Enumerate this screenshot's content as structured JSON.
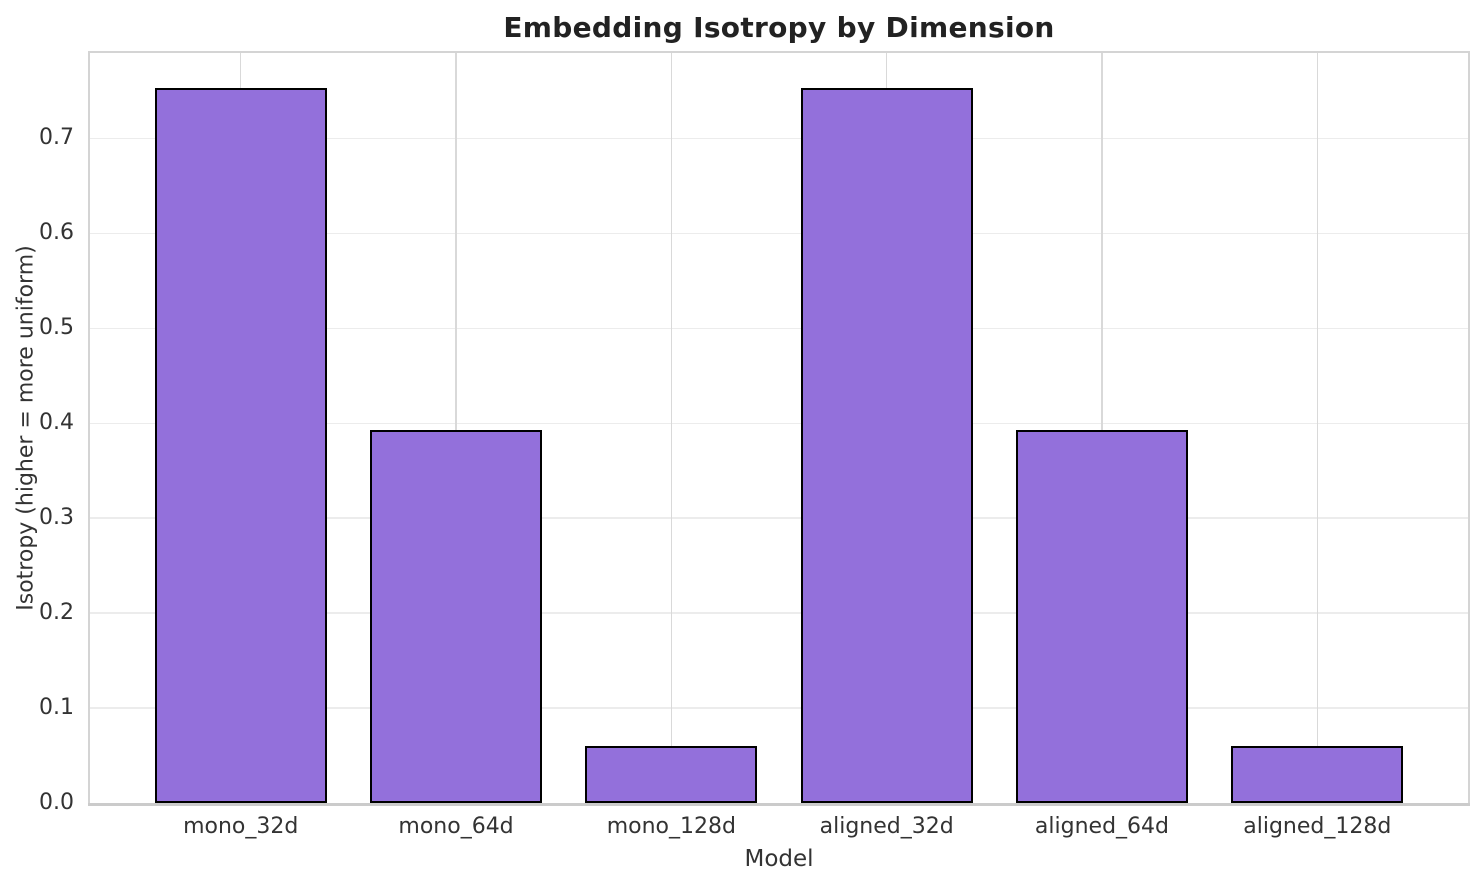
{
  "chart_data": {
    "type": "bar",
    "title": "Embedding Isotropy by Dimension",
    "xlabel": "Model",
    "ylabel": "Isotropy (higher = more uniform)",
    "categories": [
      "mono_32d",
      "mono_64d",
      "mono_128d",
      "aligned_32d",
      "aligned_64d",
      "aligned_128d"
    ],
    "values": [
      0.753,
      0.393,
      0.06,
      0.753,
      0.393,
      0.06
    ],
    "ylim": [
      0,
      0.79
    ],
    "xlim": [
      -0.7,
      5.7
    ],
    "yticks": [
      0.0,
      0.1,
      0.2,
      0.3,
      0.4,
      0.5,
      0.6,
      0.7
    ],
    "ytick_labels": [
      "0.0",
      "0.1",
      "0.2",
      "0.3",
      "0.4",
      "0.5",
      "0.6",
      "0.7"
    ],
    "bar_width": 0.8,
    "grid": true,
    "legend": false,
    "colors": {
      "bar_fill": "#9370db",
      "bar_edge": "#000000",
      "grid_horizontal": "#ececec",
      "grid_vertical": "#d9d9d9",
      "spine": "#d4d4d4",
      "axis_line": "#cbcbcb",
      "text": "#333333",
      "title_text": "#222222"
    }
  }
}
